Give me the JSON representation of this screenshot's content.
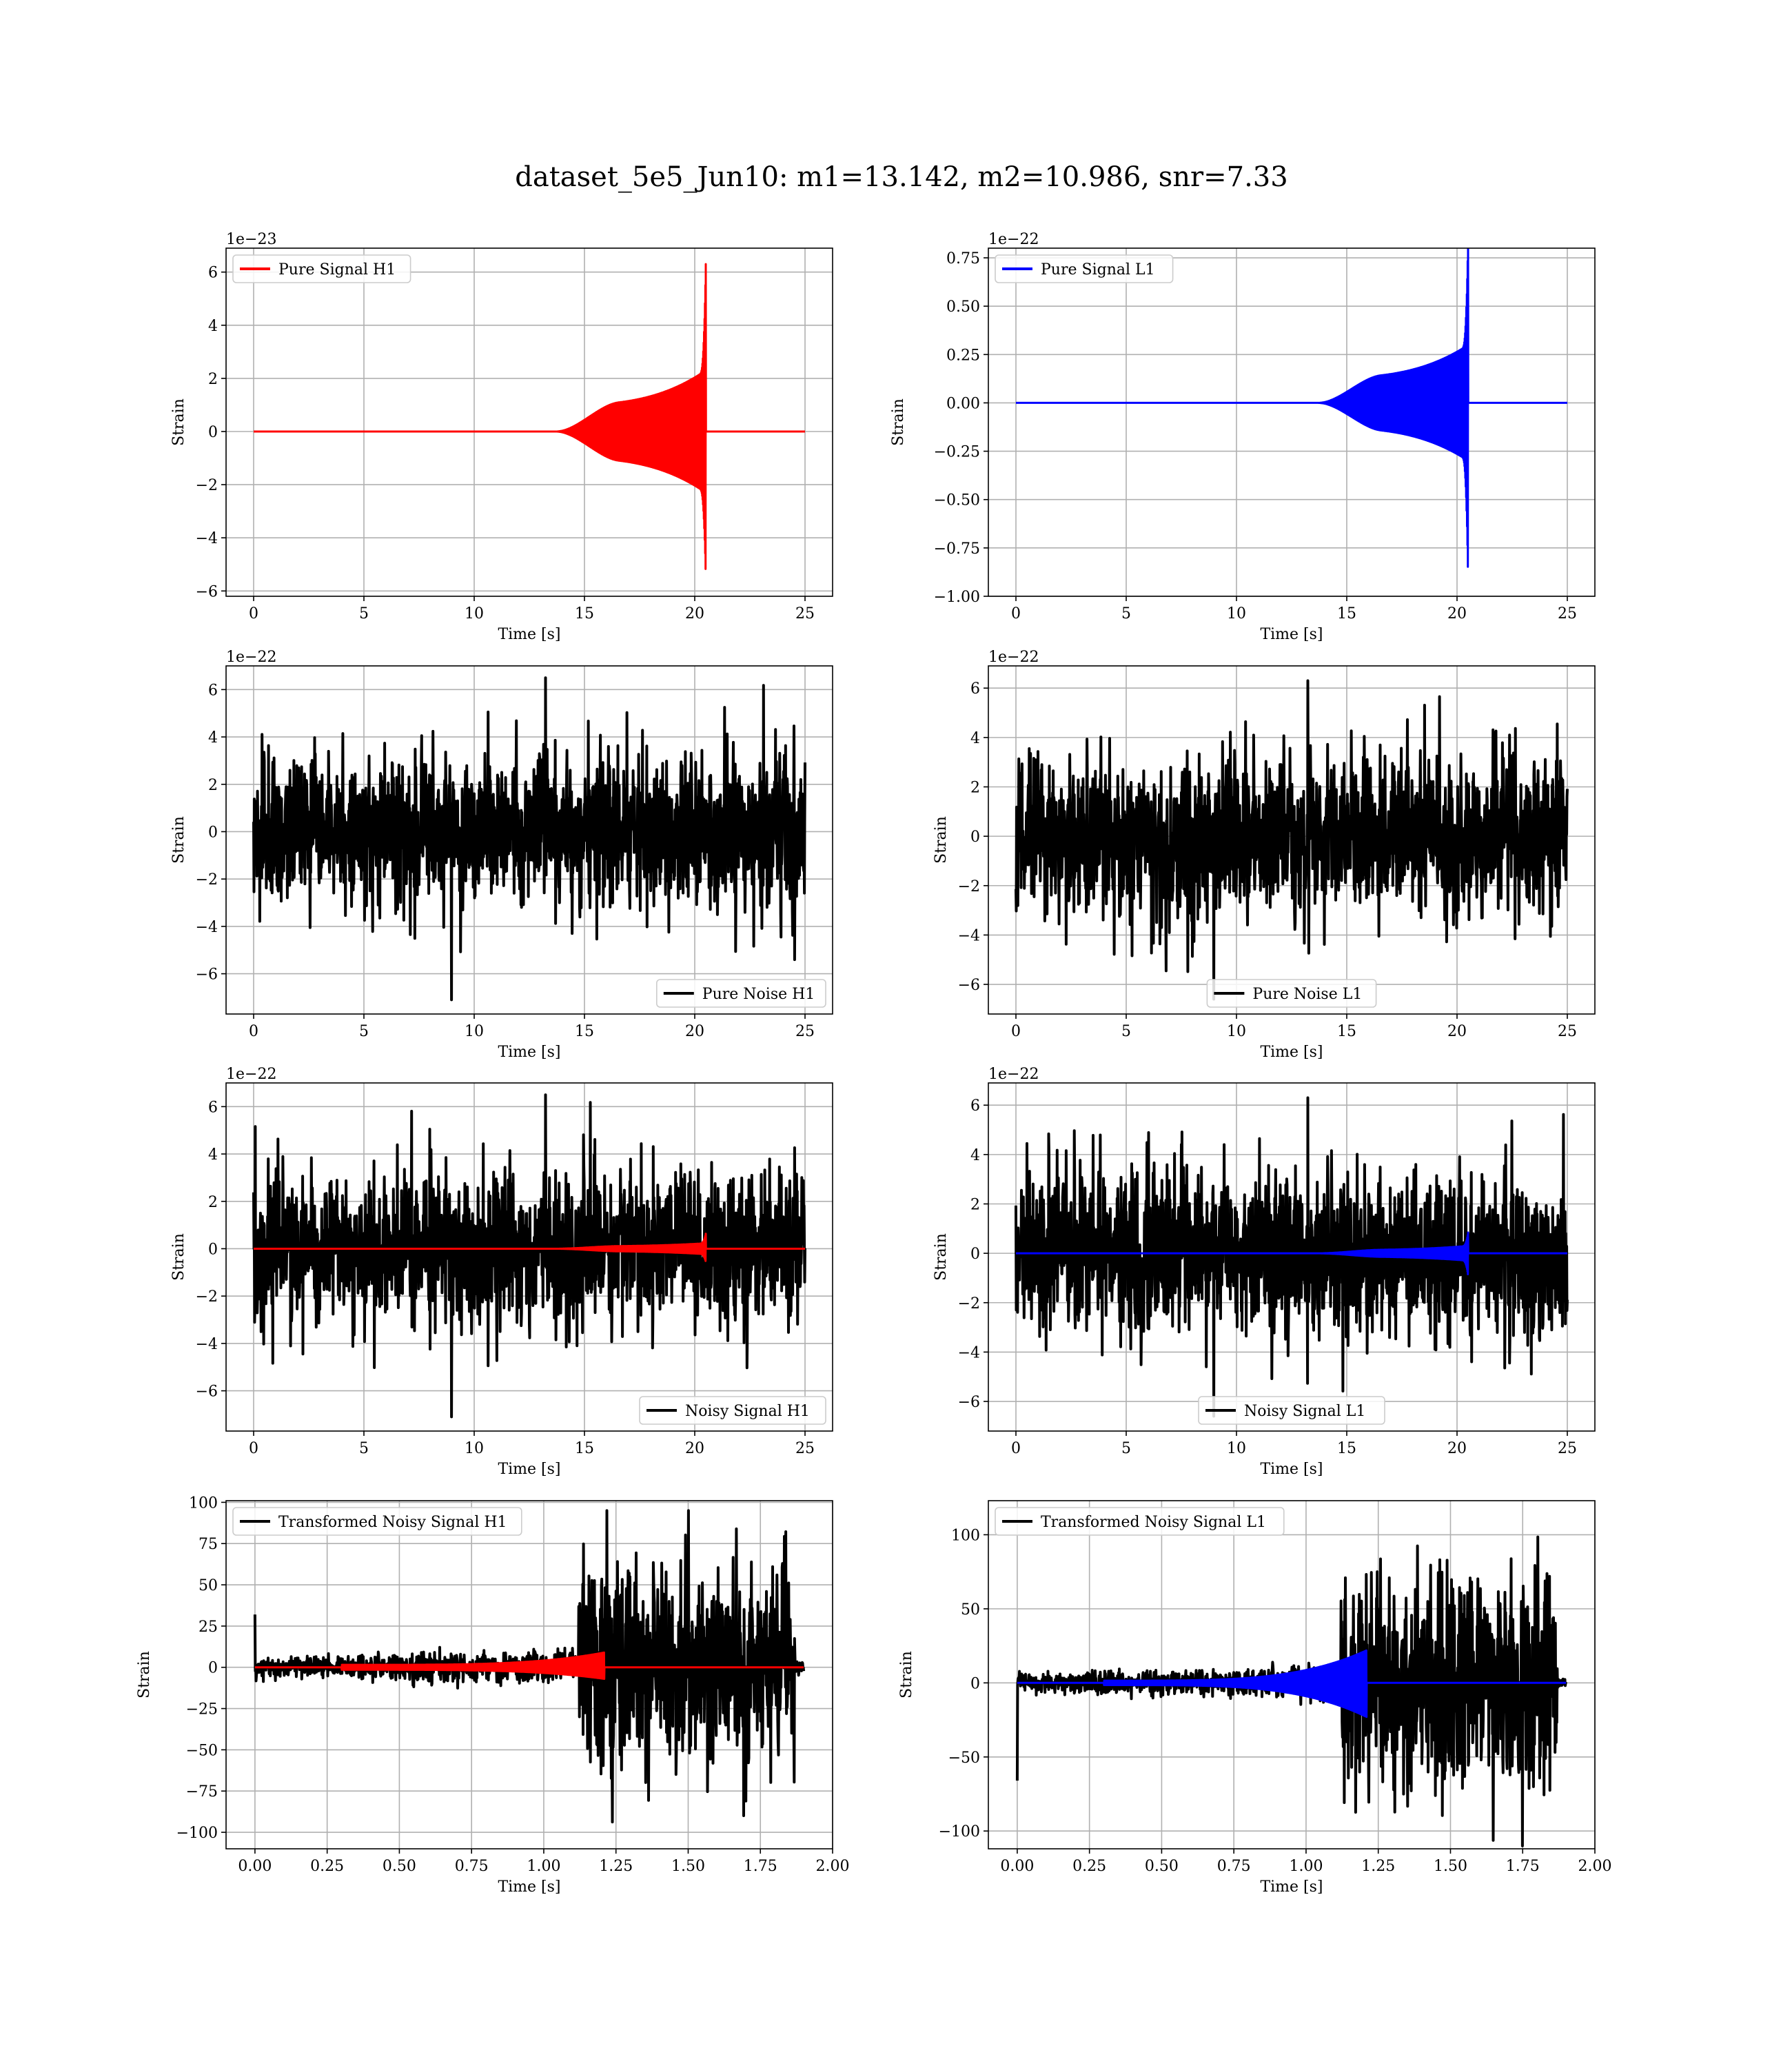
{
  "figure": {
    "suptitle": "dataset_5e5_Jun10: m1=13.142, m2=10.986, snr=7.33"
  },
  "colors": {
    "h1_signal": "#ff0000",
    "l1_signal": "#0000ff",
    "noise": "#000000",
    "grid": "#b0b0b0"
  },
  "chart_data": [
    {
      "id": "pure-signal-h1",
      "type": "line",
      "detector": "H1",
      "kind": "signal",
      "xlabel": "Time [s]",
      "ylabel": "Strain",
      "offset_text": "1e−23",
      "xlim": [
        -1.25,
        26.25
      ],
      "ylim": [
        -6.2,
        6.9
      ],
      "xticks": [
        0,
        5,
        10,
        15,
        20,
        25
      ],
      "xtick_labels": [
        "0",
        "5",
        "10",
        "15",
        "20",
        "25"
      ],
      "yticks": [
        -6,
        -4,
        -2,
        0,
        2,
        4,
        6
      ],
      "ytick_labels": [
        "−6",
        "−4",
        "−2",
        "0",
        "2",
        "4",
        "6"
      ],
      "grid": true,
      "legend_loc": "upper left",
      "series": [
        {
          "name": "Pure Signal H1",
          "color": "#ff0000",
          "t_start": 0,
          "t_end": 25,
          "t_onset": 13.7,
          "plateau": 1.0,
          "merger_t": 20.5,
          "peak_pos": 6.3,
          "peak_neg": -5.5
        }
      ]
    },
    {
      "id": "pure-signal-l1",
      "type": "line",
      "detector": "L1",
      "kind": "signal",
      "xlabel": "Time [s]",
      "ylabel": "Strain",
      "offset_text": "1e−22",
      "xlim": [
        -1.25,
        26.25
      ],
      "ylim": [
        -1.0,
        0.8
      ],
      "xticks": [
        0,
        5,
        10,
        15,
        20,
        25
      ],
      "xtick_labels": [
        "0",
        "5",
        "10",
        "15",
        "20",
        "25"
      ],
      "yticks": [
        -1.0,
        -0.75,
        -0.5,
        -0.25,
        0.0,
        0.25,
        0.5,
        0.75
      ],
      "ytick_labels": [
        "−1.00",
        "−0.75",
        "−0.50",
        "−0.25",
        "0.00",
        "0.25",
        "0.50",
        "0.75"
      ],
      "grid": true,
      "legend_loc": "upper left",
      "series": [
        {
          "name": "Pure Signal L1",
          "color": "#0000ff",
          "t_start": 0,
          "t_end": 25,
          "t_onset": 13.7,
          "plateau": 0.13,
          "merger_t": 20.5,
          "peak_pos": 0.84,
          "peak_neg": -0.91
        }
      ]
    },
    {
      "id": "pure-noise-h1",
      "type": "line",
      "detector": "H1",
      "kind": "noise",
      "xlabel": "Time [s]",
      "ylabel": "Strain",
      "offset_text": "1e−22",
      "xlim": [
        -1.25,
        26.25
      ],
      "ylim": [
        -7.7,
        7.0
      ],
      "xticks": [
        0,
        5,
        10,
        15,
        20,
        25
      ],
      "xtick_labels": [
        "0",
        "5",
        "10",
        "15",
        "20",
        "25"
      ],
      "yticks": [
        -6,
        -4,
        -2,
        0,
        2,
        4,
        6
      ],
      "ytick_labels": [
        "−6",
        "−4",
        "−2",
        "0",
        "2",
        "4",
        "6"
      ],
      "grid": true,
      "legend_loc": "lower right",
      "series": [
        {
          "name": "Pure Noise H1",
          "color": "#000000",
          "t_start": 0,
          "t_end": 25,
          "max": 6.5,
          "min": -7.1
        }
      ]
    },
    {
      "id": "pure-noise-l1",
      "type": "line",
      "detector": "L1",
      "kind": "noise",
      "xlabel": "Time [s]",
      "ylabel": "Strain",
      "offset_text": "1e−22",
      "xlim": [
        -1.25,
        26.25
      ],
      "ylim": [
        -7.2,
        6.9
      ],
      "xticks": [
        0,
        5,
        10,
        15,
        20,
        25
      ],
      "xtick_labels": [
        "0",
        "5",
        "10",
        "15",
        "20",
        "25"
      ],
      "yticks": [
        -6,
        -4,
        -2,
        0,
        2,
        4,
        6
      ],
      "ytick_labels": [
        "−6",
        "−4",
        "−2",
        "0",
        "2",
        "4",
        "6"
      ],
      "grid": true,
      "legend_loc": "lower center",
      "series": [
        {
          "name": "Pure Noise L1",
          "color": "#000000",
          "t_start": 0,
          "t_end": 25,
          "max": 6.3,
          "min": -6.6
        }
      ]
    },
    {
      "id": "noisy-signal-h1",
      "type": "line",
      "detector": "H1",
      "kind": "noisy",
      "xlabel": "Time [s]",
      "ylabel": "Strain",
      "offset_text": "1e−22",
      "xlim": [
        -1.25,
        26.25
      ],
      "ylim": [
        -7.7,
        7.0
      ],
      "xticks": [
        0,
        5,
        10,
        15,
        20,
        25
      ],
      "xtick_labels": [
        "0",
        "5",
        "10",
        "15",
        "20",
        "25"
      ],
      "yticks": [
        -6,
        -4,
        -2,
        0,
        2,
        4,
        6
      ],
      "ytick_labels": [
        "−6",
        "−4",
        "−2",
        "0",
        "2",
        "4",
        "6"
      ],
      "grid": true,
      "legend_loc": "lower right",
      "series": [
        {
          "name": "Noisy Signal H1",
          "color": "#000000",
          "t_start": 0,
          "t_end": 25,
          "max": 6.5,
          "min": -7.1
        },
        {
          "name": "",
          "color": "#ff0000",
          "t_start": 0,
          "t_end": 25,
          "t_onset": 13.7,
          "plateau": 0.1,
          "merger_t": 20.5,
          "peak_pos": 0.63,
          "peak_neg": -0.55
        }
      ]
    },
    {
      "id": "noisy-signal-l1",
      "type": "line",
      "detector": "L1",
      "kind": "noisy",
      "xlabel": "Time [s]",
      "ylabel": "Strain",
      "offset_text": "1e−22",
      "xlim": [
        -1.25,
        26.25
      ],
      "ylim": [
        -7.2,
        6.9
      ],
      "xticks": [
        0,
        5,
        10,
        15,
        20,
        25
      ],
      "xtick_labels": [
        "0",
        "5",
        "10",
        "15",
        "20",
        "25"
      ],
      "yticks": [
        -6,
        -4,
        -2,
        0,
        2,
        4,
        6
      ],
      "ytick_labels": [
        "−6",
        "−4",
        "−2",
        "0",
        "2",
        "4",
        "6"
      ],
      "grid": true,
      "legend_loc": "lower center",
      "series": [
        {
          "name": "Noisy Signal L1",
          "color": "#000000",
          "t_start": 0,
          "t_end": 25,
          "max": 6.3,
          "min": -6.6
        },
        {
          "name": "",
          "color": "#0000ff",
          "t_start": 0,
          "t_end": 25,
          "t_onset": 13.7,
          "plateau": 0.13,
          "merger_t": 20.5,
          "peak_pos": 0.84,
          "peak_neg": -0.91
        }
      ]
    },
    {
      "id": "transformed-noisy-signal-h1",
      "type": "line",
      "detector": "H1",
      "kind": "transformed",
      "xlabel": "Time [s]",
      "ylabel": "Strain",
      "offset_text": "",
      "xlim": [
        -0.1,
        2.0
      ],
      "ylim": [
        -110,
        101
      ],
      "xticks": [
        0,
        0.25,
        0.5,
        0.75,
        1.0,
        1.25,
        1.5,
        1.75,
        2.0
      ],
      "xtick_labels": [
        "0.00",
        "0.25",
        "0.50",
        "0.75",
        "1.00",
        "1.25",
        "1.50",
        "1.75",
        "2.00"
      ],
      "yticks": [
        -100,
        -75,
        -50,
        -25,
        0,
        25,
        50,
        75,
        100
      ],
      "ytick_labels": [
        "−100",
        "−75",
        "−50",
        "−25",
        "0",
        "25",
        "50",
        "75",
        "100"
      ],
      "grid": true,
      "legend_loc": "upper left",
      "series": [
        {
          "name": "Transformed Noisy Signal H1",
          "color": "#000000",
          "t_start": 0,
          "t_end": 1.9,
          "t_jump": 1.12,
          "t_cut": 1.87,
          "early_amp": 14,
          "late_amp": 95,
          "late_min": -108,
          "spike_start": 32
        },
        {
          "name": "",
          "color": "#ff0000",
          "t_start": 0,
          "t_end": 1.9,
          "t_onset": 0.3,
          "merger_t": 1.21,
          "peak_pos": 9,
          "peak_neg": -7
        }
      ]
    },
    {
      "id": "transformed-noisy-signal-l1",
      "type": "line",
      "detector": "L1",
      "kind": "transformed",
      "xlabel": "Time [s]",
      "ylabel": "Strain",
      "offset_text": "",
      "xlim": [
        -0.1,
        2.0
      ],
      "ylim": [
        -112,
        123
      ],
      "xticks": [
        0,
        0.25,
        0.5,
        0.75,
        1.0,
        1.25,
        1.5,
        1.75,
        2.0
      ],
      "xtick_labels": [
        "0.00",
        "0.25",
        "0.50",
        "0.75",
        "1.00",
        "1.25",
        "1.50",
        "1.75",
        "2.00"
      ],
      "yticks": [
        -100,
        -50,
        0,
        50,
        100
      ],
      "ytick_labels": [
        "−100",
        "−50",
        "0",
        "50",
        "100"
      ],
      "grid": true,
      "legend_loc": "upper left",
      "series": [
        {
          "name": "Transformed Noisy Signal L1",
          "color": "#000000",
          "t_start": 0,
          "t_end": 1.9,
          "t_jump": 1.12,
          "t_cut": 1.87,
          "early_amp": 14,
          "late_amp": 112,
          "late_min": -110,
          "spike_start": -66
        },
        {
          "name": "",
          "color": "#0000ff",
          "t_start": 0,
          "t_end": 1.9,
          "t_onset": 0.3,
          "merger_t": 1.21,
          "peak_pos": 22,
          "peak_neg": -23
        }
      ]
    }
  ]
}
